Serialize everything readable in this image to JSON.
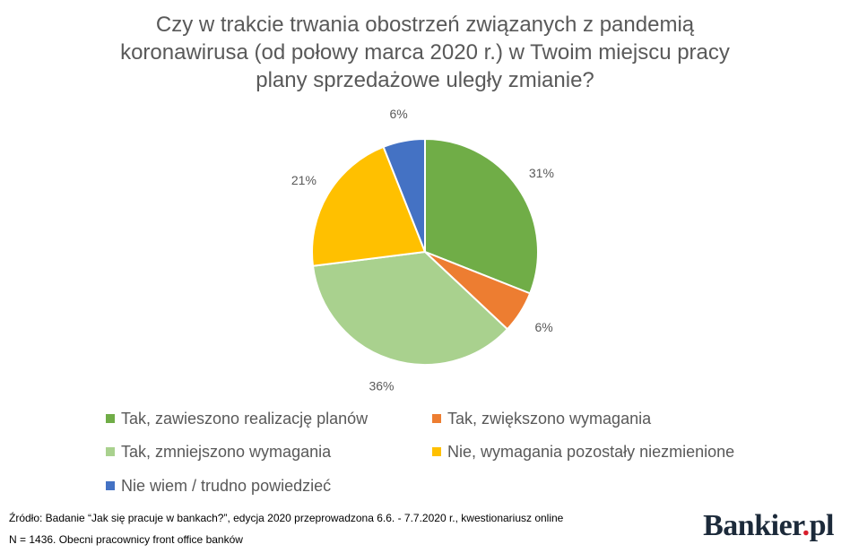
{
  "chart_data": {
    "type": "pie",
    "title_lines": [
      "Czy w trakcie trwania obostrzeń związanych z pandemią",
      "koronawirusa (od połowy marca 2020 r.) w Twoim miejscu pracy",
      "plany sprzedażowe uległy zmianie?"
    ],
    "slices": [
      {
        "label": "Tak, zawieszono realizację planów",
        "value": 31,
        "data_label": "31%",
        "color": "#70ad47"
      },
      {
        "label": "Tak, zwiększono wymagania",
        "value": 6,
        "data_label": "6%",
        "color": "#ed7d31"
      },
      {
        "label": "Tak, zmniejszono wymagania",
        "value": 36,
        "data_label": "36%",
        "color": "#a9d18e"
      },
      {
        "label": "Nie, wymagania pozostały niezmienione",
        "value": 21,
        "data_label": "21%",
        "color": "#ffc000"
      },
      {
        "label": "Nie wiem / trudno powiedzieć",
        "value": 6,
        "data_label": "6%",
        "color": "#4472c4"
      }
    ],
    "legend_position": "bottom"
  },
  "footer": {
    "source": "Źródło: Badanie “Jak się pracuje w bankach?”, edycja 2020 przeprowadzona 6.6. - 7.7.2020 r., kwestionariusz online",
    "sample": "N = 1436. Obecni pracownicy front office banków",
    "brand_name": "Bankier",
    "brand_dot": ".",
    "brand_suffix": "pl"
  }
}
